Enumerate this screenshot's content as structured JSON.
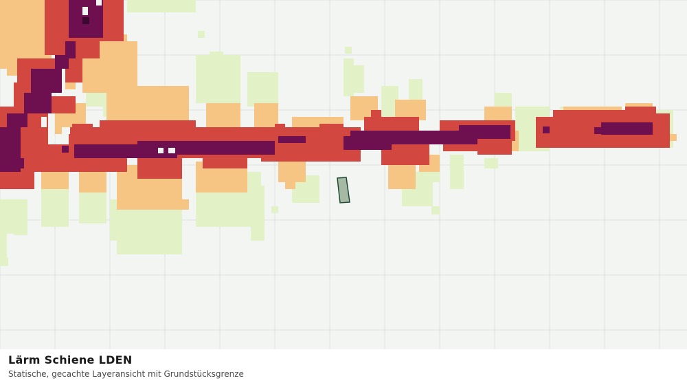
{
  "caption": {
    "title": "Lärm Schiene LDEN",
    "subtitle": "Statische, gecachte Layeransicht mit Grundstücksgrenze"
  },
  "legend_colors": {
    "background": "#f3f5f3",
    "grid_line": "#dde1dd",
    "noise_low": "#e3f2c6",
    "noise_medium": "#f6c584",
    "noise_high": "#d2473f",
    "noise_very_high": "#6e0f4f",
    "noise_peak": "#3a0830",
    "parcel_fill": "#a5b9a5",
    "parcel_outline": "#1d4a30"
  }
}
